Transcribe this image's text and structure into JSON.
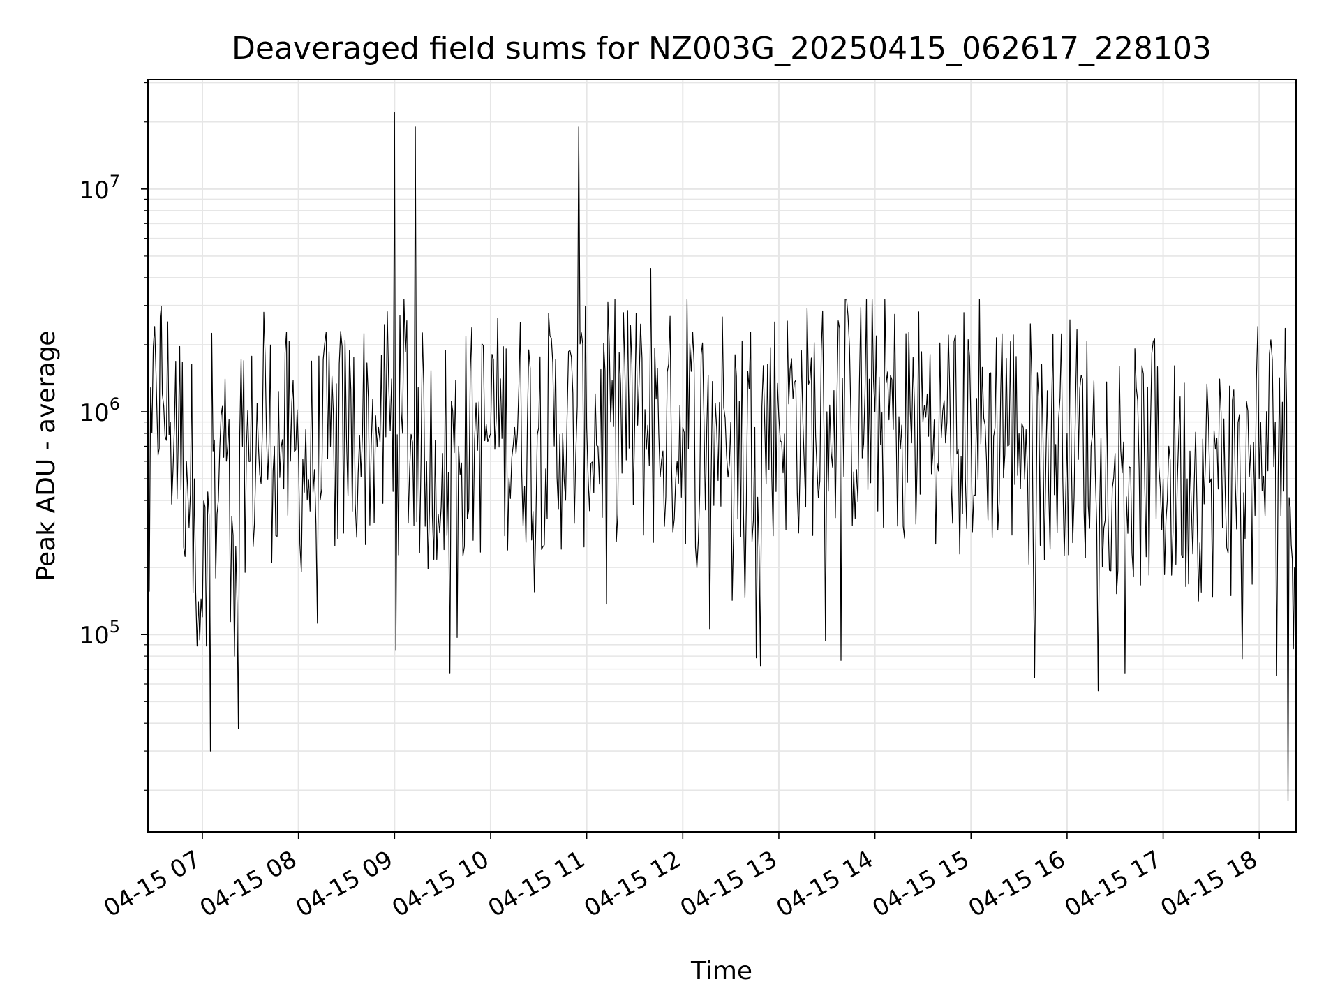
{
  "figure": {
    "title": "Deaveraged field sums for NZ003G_20250415_062617_228103",
    "xlabel": "Time",
    "ylabel": "Peak ADU - average"
  },
  "chart_data": {
    "type": "line",
    "title": "Deaveraged field sums for NZ003G_20250415_062617_228103",
    "xlabel": "Time",
    "ylabel": "Peak ADU - average",
    "y_scale": "log",
    "grid": true,
    "line_color": "#000000",
    "grid_color": "#e6e6e6",
    "x_range": [
      "2025-04-15 06:26",
      "2025-04-15 18:23"
    ],
    "ylim": [
      13000,
      31000000
    ],
    "x_ticks": [
      "04-15 07",
      "04-15 08",
      "04-15 09",
      "04-15 10",
      "04-15 11",
      "04-15 12",
      "04-15 13",
      "04-15 14",
      "04-15 15",
      "04-15 16",
      "04-15 17",
      "04-15 18"
    ],
    "y_ticks": [
      {
        "base": "10",
        "exp": "5",
        "value": 100000
      },
      {
        "base": "10",
        "exp": "6",
        "value": 1000000
      },
      {
        "base": "10",
        "exp": "7",
        "value": 10000000
      }
    ],
    "series": [
      {
        "values_note_free": true,
        "x": [
          "2025-04-15 06:26",
          "2025-04-15 06:31",
          "2025-04-15 06:35",
          "2025-04-15 06:40",
          "2025-04-15 06:45",
          "2025-04-15 06:50",
          "2025-04-15 06:55",
          "2025-04-15 07:00",
          "2025-04-15 07:05",
          "2025-04-15 07:10",
          "2025-04-15 07:15",
          "2025-04-15 07:20",
          "2025-04-15 07:25",
          "2025-04-15 07:30",
          "2025-04-15 07:35",
          "2025-04-15 07:40",
          "2025-04-15 07:45",
          "2025-04-15 07:50",
          "2025-04-15 07:55",
          "2025-04-15 08:00",
          "2025-04-15 08:10",
          "2025-04-15 08:20",
          "2025-04-15 08:30",
          "2025-04-15 08:40",
          "2025-04-15 08:50",
          "2025-04-15 09:00",
          "2025-04-15 09:05",
          "2025-04-15 09:13",
          "2025-04-15 09:20",
          "2025-04-15 09:30",
          "2025-04-15 09:40",
          "2025-04-15 09:50",
          "2025-04-15 10:00",
          "2025-04-15 10:15",
          "2025-04-15 10:30",
          "2025-04-15 10:45",
          "2025-04-15 10:55",
          "2025-04-15 11:00",
          "2025-04-15 11:15",
          "2025-04-15 11:30",
          "2025-04-15 11:40",
          "2025-04-15 11:45",
          "2025-04-15 12:00",
          "2025-04-15 12:15",
          "2025-04-15 12:30",
          "2025-04-15 12:45",
          "2025-04-15 13:00",
          "2025-04-15 13:15",
          "2025-04-15 13:30",
          "2025-04-15 13:45",
          "2025-04-15 14:00",
          "2025-04-15 14:15",
          "2025-04-15 14:30",
          "2025-04-15 14:45",
          "2025-04-15 15:00",
          "2025-04-15 15:15",
          "2025-04-15 15:30",
          "2025-04-15 15:45",
          "2025-04-15 16:00",
          "2025-04-15 16:15",
          "2025-04-15 16:30",
          "2025-04-15 16:45",
          "2025-04-15 17:00",
          "2025-04-15 17:15",
          "2025-04-15 17:30",
          "2025-04-15 17:45",
          "2025-04-15 18:00",
          "2025-04-15 18:10",
          "2025-04-15 18:18",
          "2025-04-15 18:22"
        ],
        "values": [
          180000,
          1500000,
          1200000,
          900000,
          800000,
          600000,
          500000,
          120000,
          30000,
          400000,
          600000,
          80000,
          700000,
          600000,
          700000,
          800000,
          700000,
          750000,
          600000,
          650000,
          550000,
          700000,
          750000,
          800000,
          850000,
          22000000,
          800000,
          19000000,
          600000,
          650000,
          700000,
          750000,
          800000,
          850000,
          850000,
          800000,
          19000000,
          850000,
          900000,
          900000,
          4400000,
          800000,
          850000,
          850000,
          900000,
          850000,
          950000,
          900000,
          1000000,
          950000,
          1000000,
          950000,
          900000,
          900000,
          850000,
          850000,
          800000,
          750000,
          800000,
          700000,
          650000,
          550000,
          500000,
          500000,
          500000,
          500000,
          500000,
          900000,
          18000,
          200000
        ]
      }
    ]
  }
}
